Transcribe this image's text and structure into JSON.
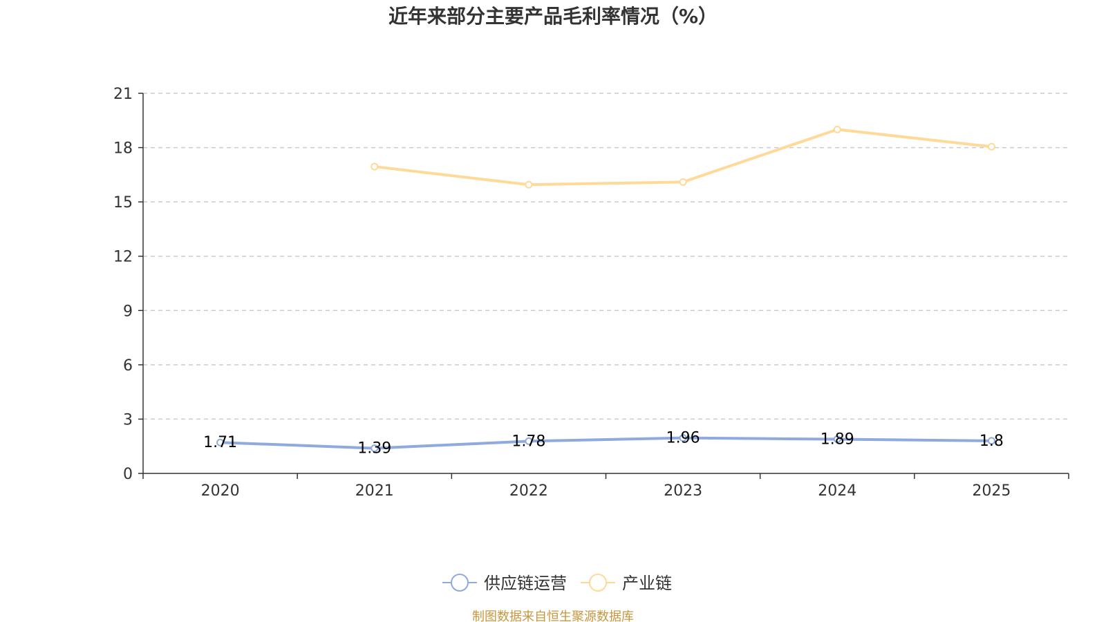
{
  "chart_data": {
    "type": "line",
    "title": "近年来部分主要产品毛利率情况（%）",
    "categories": [
      "2020",
      "2021",
      "2022",
      "2023",
      "2024",
      "2025"
    ],
    "ylim": [
      0,
      21
    ],
    "yticks": [
      0,
      3,
      6,
      9,
      12,
      15,
      18,
      21
    ],
    "grid": true,
    "legend_position": "bottom-center",
    "series": [
      {
        "name": "供应链运营",
        "color": "#8faadc",
        "values": [
          1.71,
          1.39,
          1.78,
          1.96,
          1.89,
          1.8
        ],
        "labels": [
          "1.71",
          "1.39",
          "1.78",
          "1.96",
          "1.89",
          "1.8"
        ]
      },
      {
        "name": "产业链",
        "color": "#ffd998",
        "values": [
          null,
          16.95,
          15.95,
          16.1,
          19.0,
          18.05
        ]
      }
    ],
    "source": "制图数据来自恒生聚源数据库",
    "source_color": "#c8963c"
  }
}
